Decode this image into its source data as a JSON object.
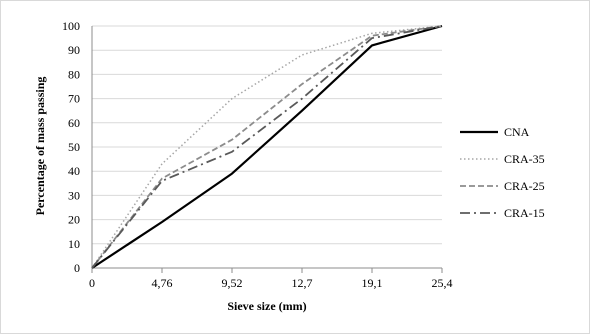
{
  "chart_data": {
    "type": "line",
    "xlabel": "Sieve size (mm)",
    "ylabel": "Percentage of mass passing",
    "categories": [
      "0",
      "4,76",
      "9,52",
      "12,7",
      "19,1",
      "25,4"
    ],
    "ylim": [
      0,
      100
    ],
    "ytick_step": 10,
    "grid": "horizontal",
    "legend_position": "right",
    "series": [
      {
        "name": "CNA",
        "values": [
          0,
          19,
          39,
          65,
          92,
          100
        ],
        "color": "#000000",
        "dash": "solid",
        "width": 2.2
      },
      {
        "name": "CRA-35",
        "values": [
          0,
          43,
          70,
          88,
          97,
          100
        ],
        "color": "#a6a6a6",
        "dash": "dotted",
        "width": 1.5
      },
      {
        "name": "CRA-25",
        "values": [
          0,
          37,
          53,
          76,
          96,
          100
        ],
        "color": "#8c8c8c",
        "dash": "dashed",
        "width": 1.8
      },
      {
        "name": "CRA-15",
        "values": [
          0,
          36,
          48,
          70,
          95,
          100
        ],
        "color": "#595959",
        "dash": "dashdot",
        "width": 1.8
      }
    ]
  }
}
